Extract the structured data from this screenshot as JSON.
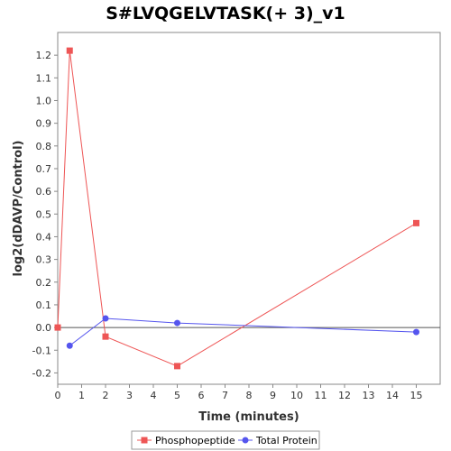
{
  "chart_data": {
    "type": "line",
    "title": "S#LVQGELVTASK(+ 3)_v1",
    "xlabel": "Time (minutes)",
    "ylabel": "log2(dDAVP/Control)",
    "xlim": [
      0,
      16
    ],
    "ylim": [
      -0.25,
      1.3
    ],
    "x_ticks": [
      0,
      1,
      2,
      3,
      4,
      5,
      6,
      7,
      8,
      9,
      10,
      11,
      12,
      13,
      14,
      15
    ],
    "y_ticks": [
      -0.2,
      -0.1,
      0.0,
      0.1,
      0.2,
      0.3,
      0.4,
      0.5,
      0.6,
      0.7,
      0.8,
      0.9,
      1.0,
      1.1,
      1.2
    ],
    "y_tick_labels": [
      "-0.2",
      "-0.1",
      "0.0",
      "0.1",
      "0.2",
      "0.3",
      "0.4",
      "0.5",
      "0.6",
      "0.7",
      "0.8",
      "0.9",
      "1.0",
      "1.1",
      "1.2"
    ],
    "grid": false,
    "zero_line": true,
    "legend_position": "bottom",
    "series": [
      {
        "name": "Phosphopeptide",
        "marker": "square",
        "color": "#ee5555",
        "x": [
          0,
          0.5,
          2,
          5,
          15
        ],
        "y": [
          0.0,
          1.22,
          -0.04,
          -0.17,
          0.46
        ]
      },
      {
        "name": "Total Protein",
        "marker": "circle",
        "color": "#5555ee",
        "x": [
          0.5,
          2,
          5,
          15
        ],
        "y": [
          -0.08,
          0.04,
          0.02,
          -0.02
        ]
      }
    ]
  }
}
